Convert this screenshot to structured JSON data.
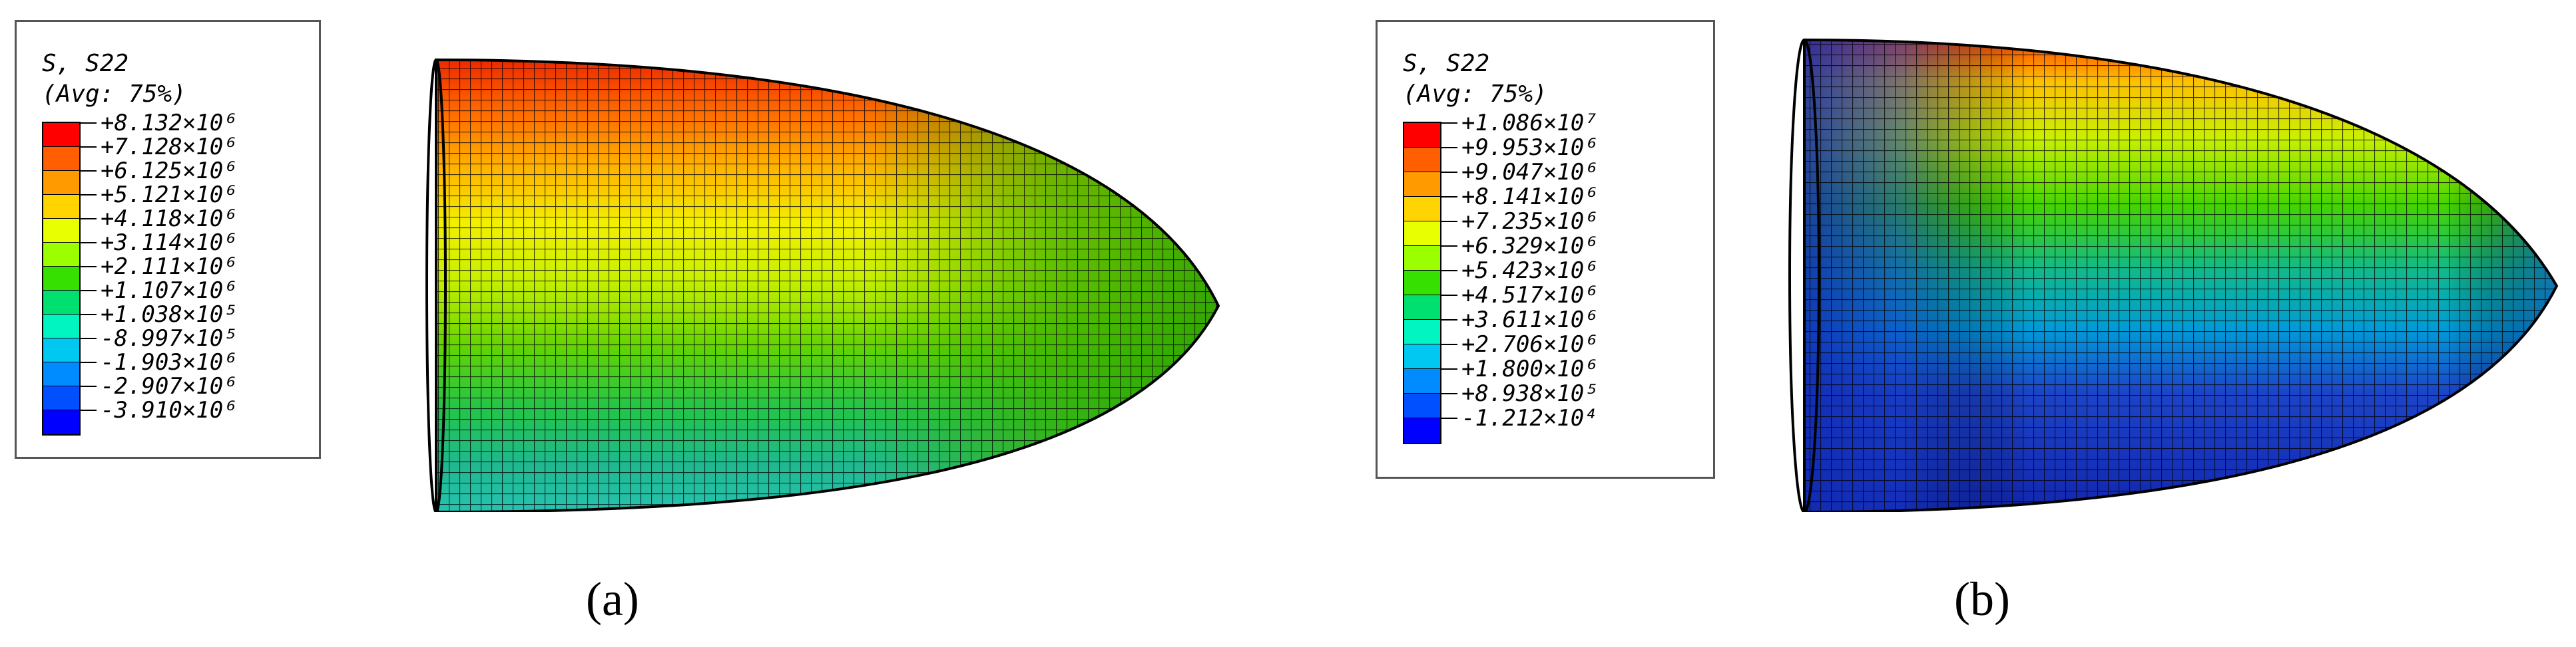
{
  "panels": [
    {
      "caption": "(a)",
      "legend": {
        "title_line1": "S, S22",
        "title_line2": "(Avg: 75%)",
        "colors": [
          "#ff0000",
          "#ff5f00",
          "#ff9a00",
          "#ffd400",
          "#e7ff00",
          "#9cff00",
          "#36e000",
          "#00e070",
          "#00f5c0",
          "#00c8f0",
          "#008cff",
          "#0050ff",
          "#0000ff"
        ],
        "labels": [
          "+8.132×10⁶",
          "+7.128×10⁶",
          "+6.125×10⁶",
          "+5.121×10⁶",
          "+4.118×10⁶",
          "+3.114×10⁶",
          "+2.111×10⁶",
          "+1.107×10⁶",
          "+1.038×10⁵",
          "-8.997×10⁵",
          "-1.903×10⁶",
          "-2.907×10⁶",
          "-3.910×10⁶"
        ]
      }
    },
    {
      "caption": "(b)",
      "legend": {
        "title_line1": "S, S22",
        "title_line2": "(Avg: 75%)",
        "colors": [
          "#ff0000",
          "#ff5f00",
          "#ff9a00",
          "#ffd400",
          "#e7ff00",
          "#9cff00",
          "#36e000",
          "#00e070",
          "#00f5c0",
          "#00c8f0",
          "#008cff",
          "#0050ff",
          "#0000ff"
        ],
        "labels": [
          "+1.086×10⁷",
          "+9.953×10⁶",
          "+9.047×10⁶",
          "+8.141×10⁶",
          "+7.235×10⁶",
          "+6.329×10⁶",
          "+5.423×10⁶",
          "+4.517×10⁶",
          "+3.611×10⁶",
          "+2.706×10⁶",
          "+1.800×10⁶",
          "+8.938×10⁵",
          "-1.212×10⁴"
        ]
      }
    }
  ]
}
